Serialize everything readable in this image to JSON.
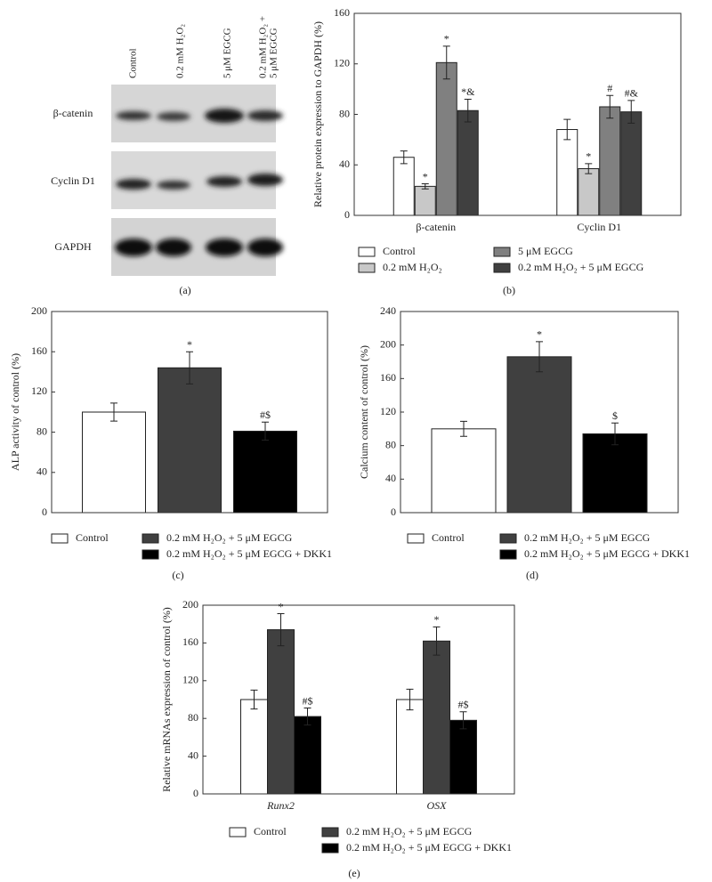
{
  "blot": {
    "columns": [
      "Control",
      "0.2 mM H₂O₂",
      "5 μM EGCG",
      [
        "0.2 mM H₂O₂ +",
        "5 μM EGCG"
      ]
    ],
    "rows": [
      "β-catenin",
      "Cyclin D1",
      "GAPDH"
    ],
    "panel": "(a)"
  },
  "chart_data": [
    {
      "type": "bar",
      "panel": "(b)",
      "y_label": "Relative protein expression to GAPDH (%)",
      "categories": [
        "β-catenin",
        "Cyclin D1"
      ],
      "ylim": [
        0,
        160
      ],
      "yticks": [
        0,
        40,
        80,
        120,
        160
      ],
      "series": [
        {
          "name": "Control",
          "color": "#ffffff",
          "values": [
            46,
            68
          ],
          "errors": [
            5,
            8
          ]
        },
        {
          "name": "0.2 mM H₂O₂",
          "color": "#c8c8c8",
          "values": [
            23,
            37
          ],
          "errors": [
            2,
            4
          ],
          "annotations": [
            "*",
            "*"
          ]
        },
        {
          "name": "5 μM EGCG",
          "color": "#808080",
          "values": [
            121,
            86
          ],
          "errors": [
            13,
            9
          ],
          "annotations": [
            "*",
            "#"
          ]
        },
        {
          "name": "0.2 mM H₂O₂ + 5 μM EGCG",
          "color": "#404040",
          "values": [
            83,
            82
          ],
          "errors": [
            9,
            9
          ],
          "annotations": [
            "*&",
            "#&"
          ]
        }
      ]
    },
    {
      "type": "bar",
      "panel": "(c)",
      "y_label": "ALP activity of control (%)",
      "categories": [
        null
      ],
      "ylim": [
        0,
        200
      ],
      "yticks": [
        0,
        40,
        80,
        120,
        160,
        200
      ],
      "series": [
        {
          "name": "Control",
          "color": "#ffffff",
          "values": [
            100
          ],
          "errors": [
            9
          ]
        },
        {
          "name": "0.2 mM H₂O₂ + 5 μM EGCG",
          "color": "#404040",
          "values": [
            144
          ],
          "errors": [
            16
          ],
          "annotations": [
            "*"
          ]
        },
        {
          "name": "0.2 mM H₂O₂ + 5 μM EGCG + DKK1",
          "color": "#000000",
          "values": [
            81
          ],
          "errors": [
            9
          ],
          "annotations": [
            "#$"
          ]
        }
      ]
    },
    {
      "type": "bar",
      "panel": "(d)",
      "y_label": "Calcium content of control (%)",
      "categories": [
        null
      ],
      "ylim": [
        0,
        240
      ],
      "yticks": [
        0,
        40,
        80,
        120,
        160,
        200,
        240
      ],
      "series": [
        {
          "name": "Control",
          "color": "#ffffff",
          "values": [
            100
          ],
          "errors": [
            9
          ]
        },
        {
          "name": "0.2 mM H₂O₂ + 5 μM EGCG",
          "color": "#404040",
          "values": [
            186
          ],
          "errors": [
            18
          ],
          "annotations": [
            "*"
          ]
        },
        {
          "name": "0.2 mM H₂O₂ + 5 μM EGCG + DKK1",
          "color": "#000000",
          "values": [
            94
          ],
          "errors": [
            13
          ],
          "annotations": [
            "$"
          ]
        }
      ]
    },
    {
      "type": "bar",
      "panel": "(e)",
      "y_label": "Relative mRNAs expression of control (%)",
      "categories": [
        "Runx2",
        "OSX"
      ],
      "ylim": [
        0,
        200
      ],
      "yticks": [
        0,
        40,
        80,
        120,
        160,
        200
      ],
      "series": [
        {
          "name": "Control",
          "color": "#ffffff",
          "values": [
            100,
            100
          ],
          "errors": [
            10,
            11
          ]
        },
        {
          "name": "0.2 mM H₂O₂ + 5 μM EGCG",
          "color": "#404040",
          "values": [
            174,
            162
          ],
          "errors": [
            17,
            15
          ],
          "annotations": [
            "*",
            "*"
          ]
        },
        {
          "name": "0.2 mM H₂O₂ + 5 μM EGCG + DKK1",
          "color": "#000000",
          "values": [
            82,
            78
          ],
          "errors": [
            9,
            9
          ],
          "annotations": [
            "#$",
            "#$"
          ]
        }
      ]
    }
  ]
}
